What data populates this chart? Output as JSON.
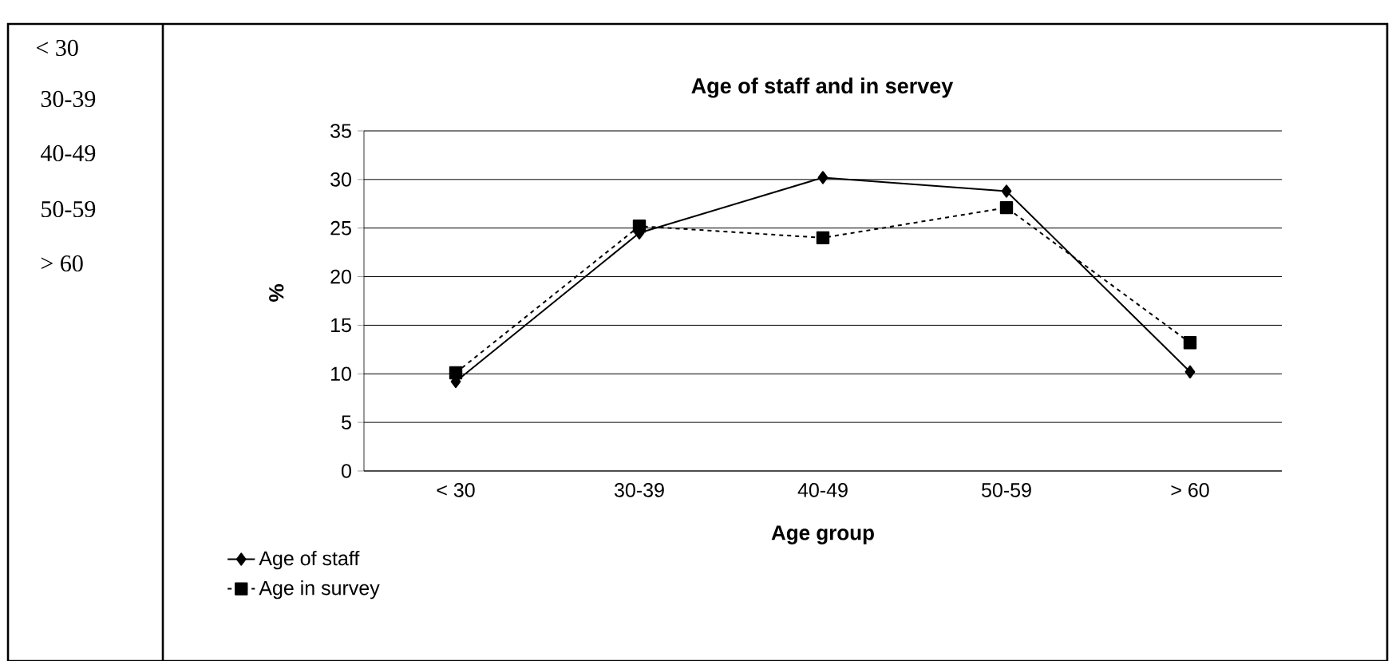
{
  "chart_data": {
    "type": "line",
    "title": "Age of staff and in servey",
    "xlabel": "Age group",
    "ylabel": "%",
    "categories": [
      "< 30",
      "30-39",
      "40-49",
      "50-59",
      "> 60"
    ],
    "series": [
      {
        "name": "Age of staff",
        "color": "#000000",
        "marker": "diamond",
        "line_style": "solid",
        "values": [
          9.2,
          24.5,
          30.2,
          28.8,
          10.2
        ]
      },
      {
        "name": "Age in survey",
        "color": "#000000",
        "marker": "square",
        "line_style": "dashed",
        "values": [
          10.1,
          25.2,
          24.0,
          27.1,
          13.2
        ]
      }
    ],
    "ylim": [
      0,
      35
    ],
    "yticks": [
      0,
      5,
      10,
      15,
      20,
      25,
      30,
      35
    ],
    "grid": "y",
    "legend": "bottom left",
    "annotations": [
      "< 30",
      "30-39",
      "40-49",
      "50-59",
      "> 60"
    ]
  }
}
